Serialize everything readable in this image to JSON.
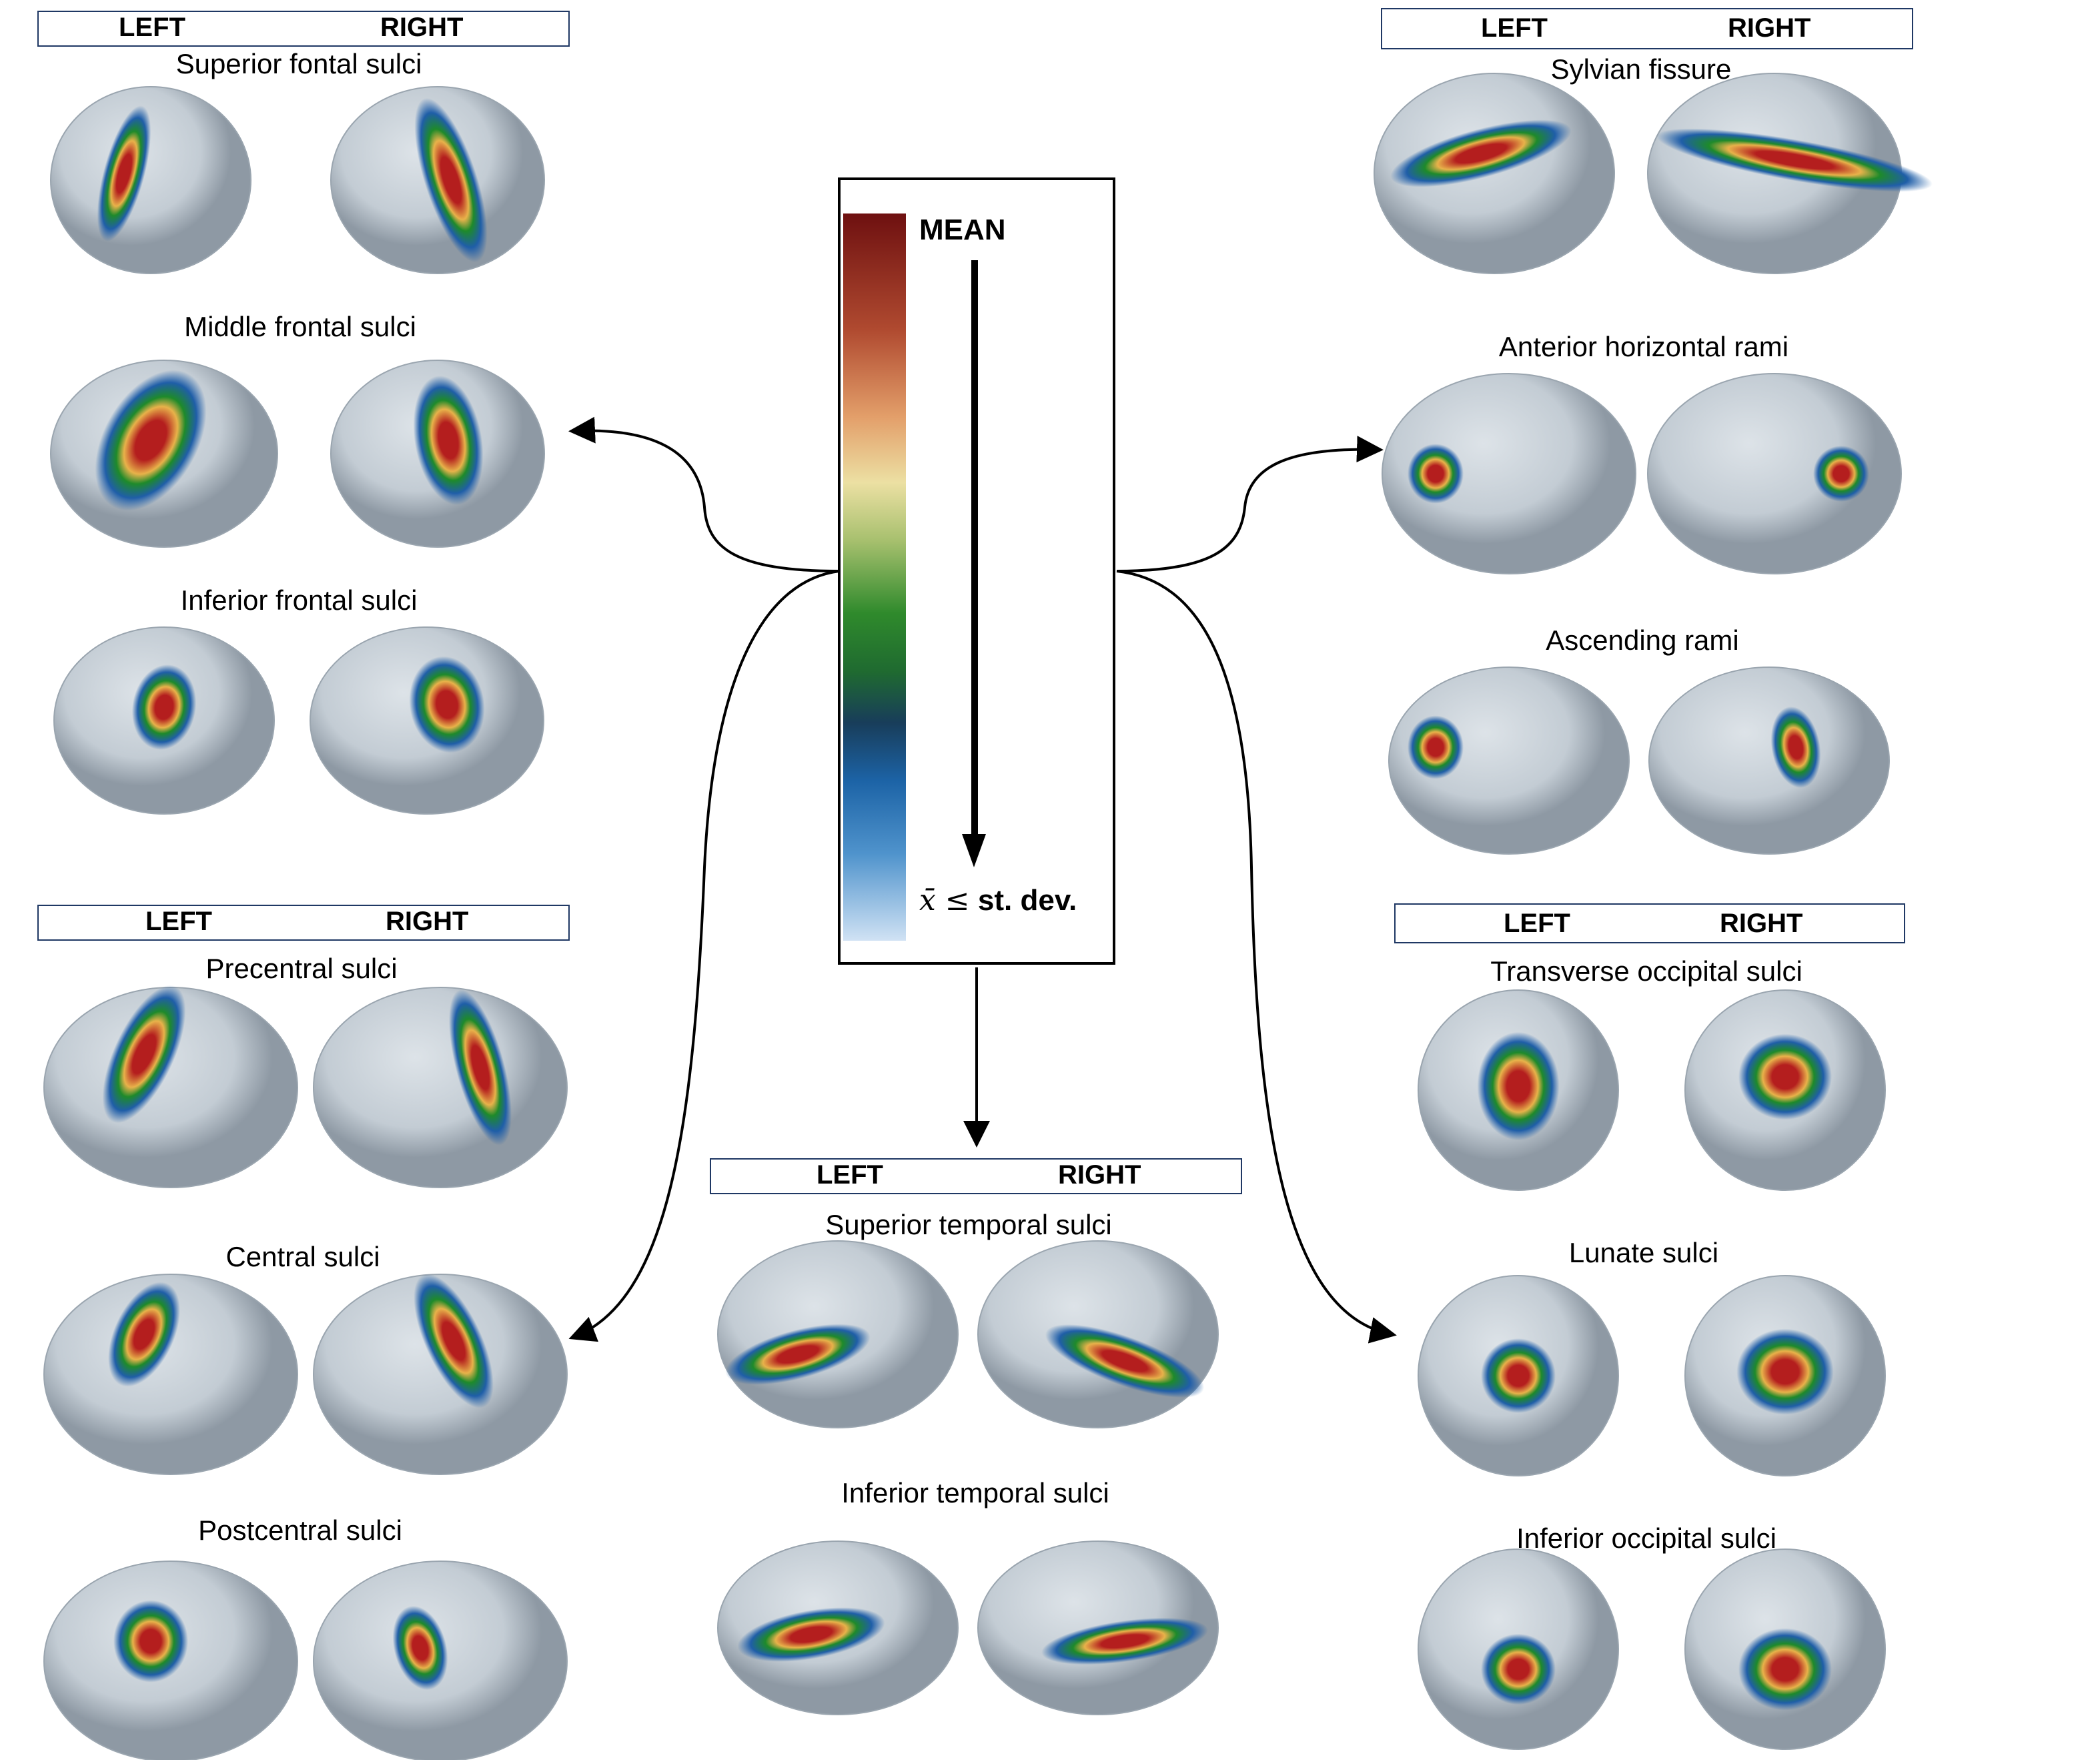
{
  "headers": {
    "left_label": "LEFT",
    "right_label": "RIGHT"
  },
  "legend": {
    "top_label": "MEAN",
    "bottom_symbol": "x̄ ≤",
    "bottom_text": "st. dev."
  },
  "panels": [
    {
      "id": "superior-frontal-sulci",
      "title": "Superior fontal sulci"
    },
    {
      "id": "middle-frontal-sulci",
      "title": "Middle frontal sulci"
    },
    {
      "id": "inferior-frontal-sulci",
      "title": "Inferior frontal sulci"
    },
    {
      "id": "precentral-sulci",
      "title": "Precentral sulci"
    },
    {
      "id": "central-sulci",
      "title": "Central sulci"
    },
    {
      "id": "postcentral-sulci",
      "title": "Postcentral sulci"
    },
    {
      "id": "superior-temporal-sulci",
      "title": "Superior temporal sulci"
    },
    {
      "id": "inferior-temporal-sulci",
      "title": "Inferior temporal sulci"
    },
    {
      "id": "sylvian-fissure",
      "title": "Sylvian fissure"
    },
    {
      "id": "anterior-horizontal-rami",
      "title": "Anterior horizontal rami"
    },
    {
      "id": "ascending-rami",
      "title": "Ascending rami"
    },
    {
      "id": "transverse-occipital-sulci",
      "title": "Transverse occipital sulci"
    },
    {
      "id": "lunate-sulci",
      "title": "Lunate sulci"
    },
    {
      "id": "inferior-occipital-sulci",
      "title": "Inferior occipital sulci"
    }
  ],
  "colors": {
    "brain_surface": "#c3ccd4",
    "header_border": "#1f3864",
    "heat_core": "#b41e1e",
    "heat_mid": "#e8b24a",
    "heat_green": "#1e8a2a",
    "heat_blue": "#1f5ea8"
  }
}
